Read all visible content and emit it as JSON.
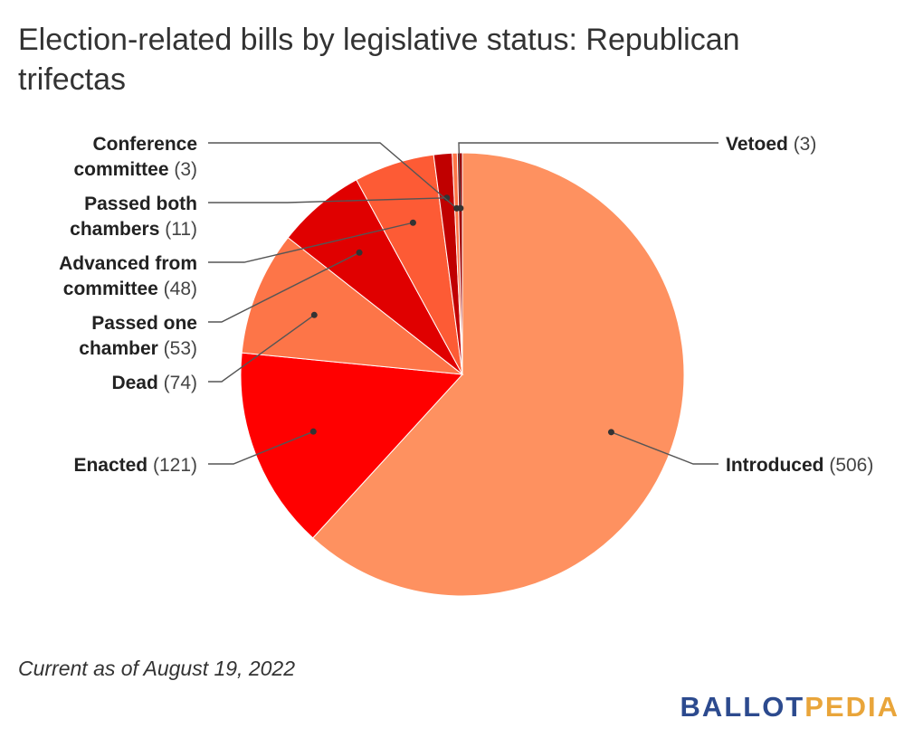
{
  "title": "Election-related bills by legislative status: Republican trifectas",
  "chart_data": {
    "type": "pie",
    "title": "Election-related bills by legislative status: Republican trifectas",
    "slices": [
      {
        "label": "Introduced",
        "name_lines": [
          "Introduced"
        ],
        "value": 506,
        "color": "#fe9160"
      },
      {
        "label": "Enacted",
        "name_lines": [
          "Enacted"
        ],
        "value": 121,
        "color": "#ff0000"
      },
      {
        "label": "Dead",
        "name_lines": [
          "Dead"
        ],
        "value": 74,
        "color": "#fd7548"
      },
      {
        "label": "Passed one chamber",
        "name_lines": [
          "Passed one",
          "chamber"
        ],
        "value": 53,
        "color": "#e00000"
      },
      {
        "label": "Advanced from committee",
        "name_lines": [
          "Advanced from",
          "committee"
        ],
        "value": 48,
        "color": "#fd5b35"
      },
      {
        "label": "Passed both chambers",
        "name_lines": [
          "Passed both",
          "chambers"
        ],
        "value": 11,
        "color": "#c00000"
      },
      {
        "label": "Conference committee",
        "name_lines": [
          "Conference",
          "committee"
        ],
        "value": 3,
        "color": "#fd7548"
      },
      {
        "label": "Vetoed",
        "name_lines": [
          "Vetoed"
        ],
        "value": 3,
        "color": "#9e0000"
      }
    ]
  },
  "footnote": "Current as of August 19, 2022",
  "logo": {
    "part1": "BALLOT",
    "part2": "PEDIA"
  }
}
